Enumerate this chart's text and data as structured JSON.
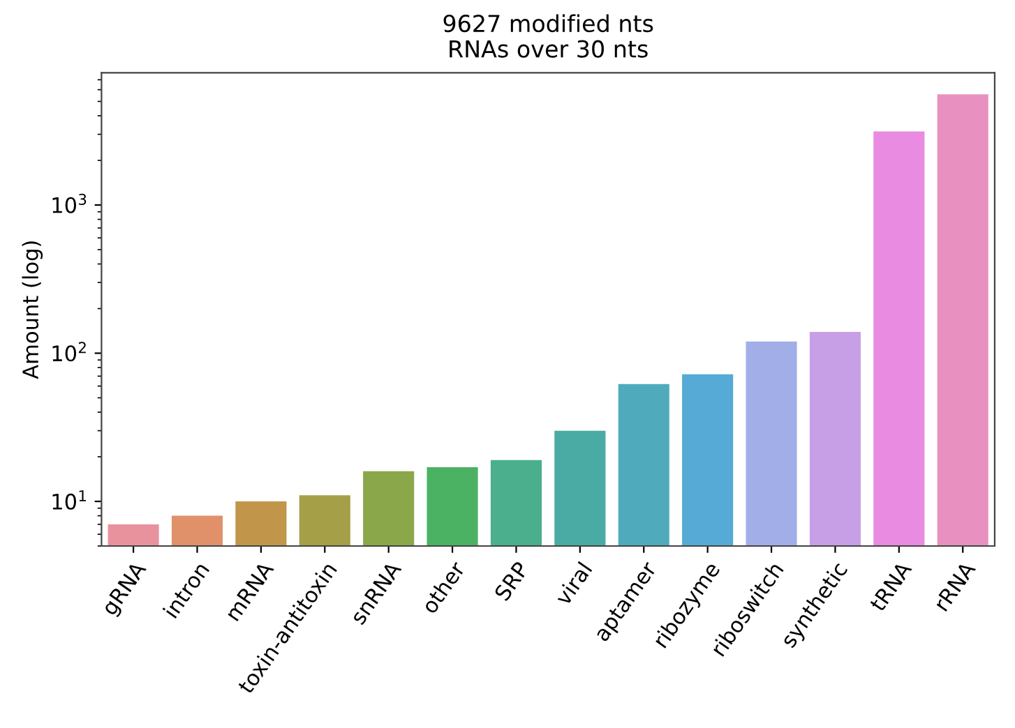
{
  "chart_data": {
    "type": "bar",
    "title": "9627 modified nts",
    "subtitle": "RNAs over 30 nts",
    "ylabel": "Amount (log)",
    "categories": [
      "gRNA",
      "intron",
      "mRNA",
      "toxin-antitoxin",
      "snRNA",
      "other",
      "SRP",
      "viral",
      "aptamer",
      "ribozyme",
      "riboswitch",
      "synthetic",
      "tRNA",
      "rRNA"
    ],
    "values": [
      7,
      8,
      10,
      11,
      16,
      17,
      19,
      30,
      62,
      72,
      120,
      139,
      3140,
      5580
    ],
    "colors": [
      "#e8929e",
      "#e0916a",
      "#c1964b",
      "#a59f48",
      "#8aa84a",
      "#4bb263",
      "#4bae8d",
      "#4aaaa4",
      "#4fabbb",
      "#55abd6",
      "#a2aee8",
      "#c79fe6",
      "#e98be0",
      "#e891c1"
    ],
    "log": "y",
    "ylim": [
      5,
      7800
    ],
    "yticks": [
      {
        "value": 10,
        "label": "10$^{1}$"
      },
      {
        "value": 100,
        "label": "10$^{2}$"
      },
      {
        "value": 1000,
        "label": "10$^{3}$"
      }
    ],
    "grid": false
  }
}
